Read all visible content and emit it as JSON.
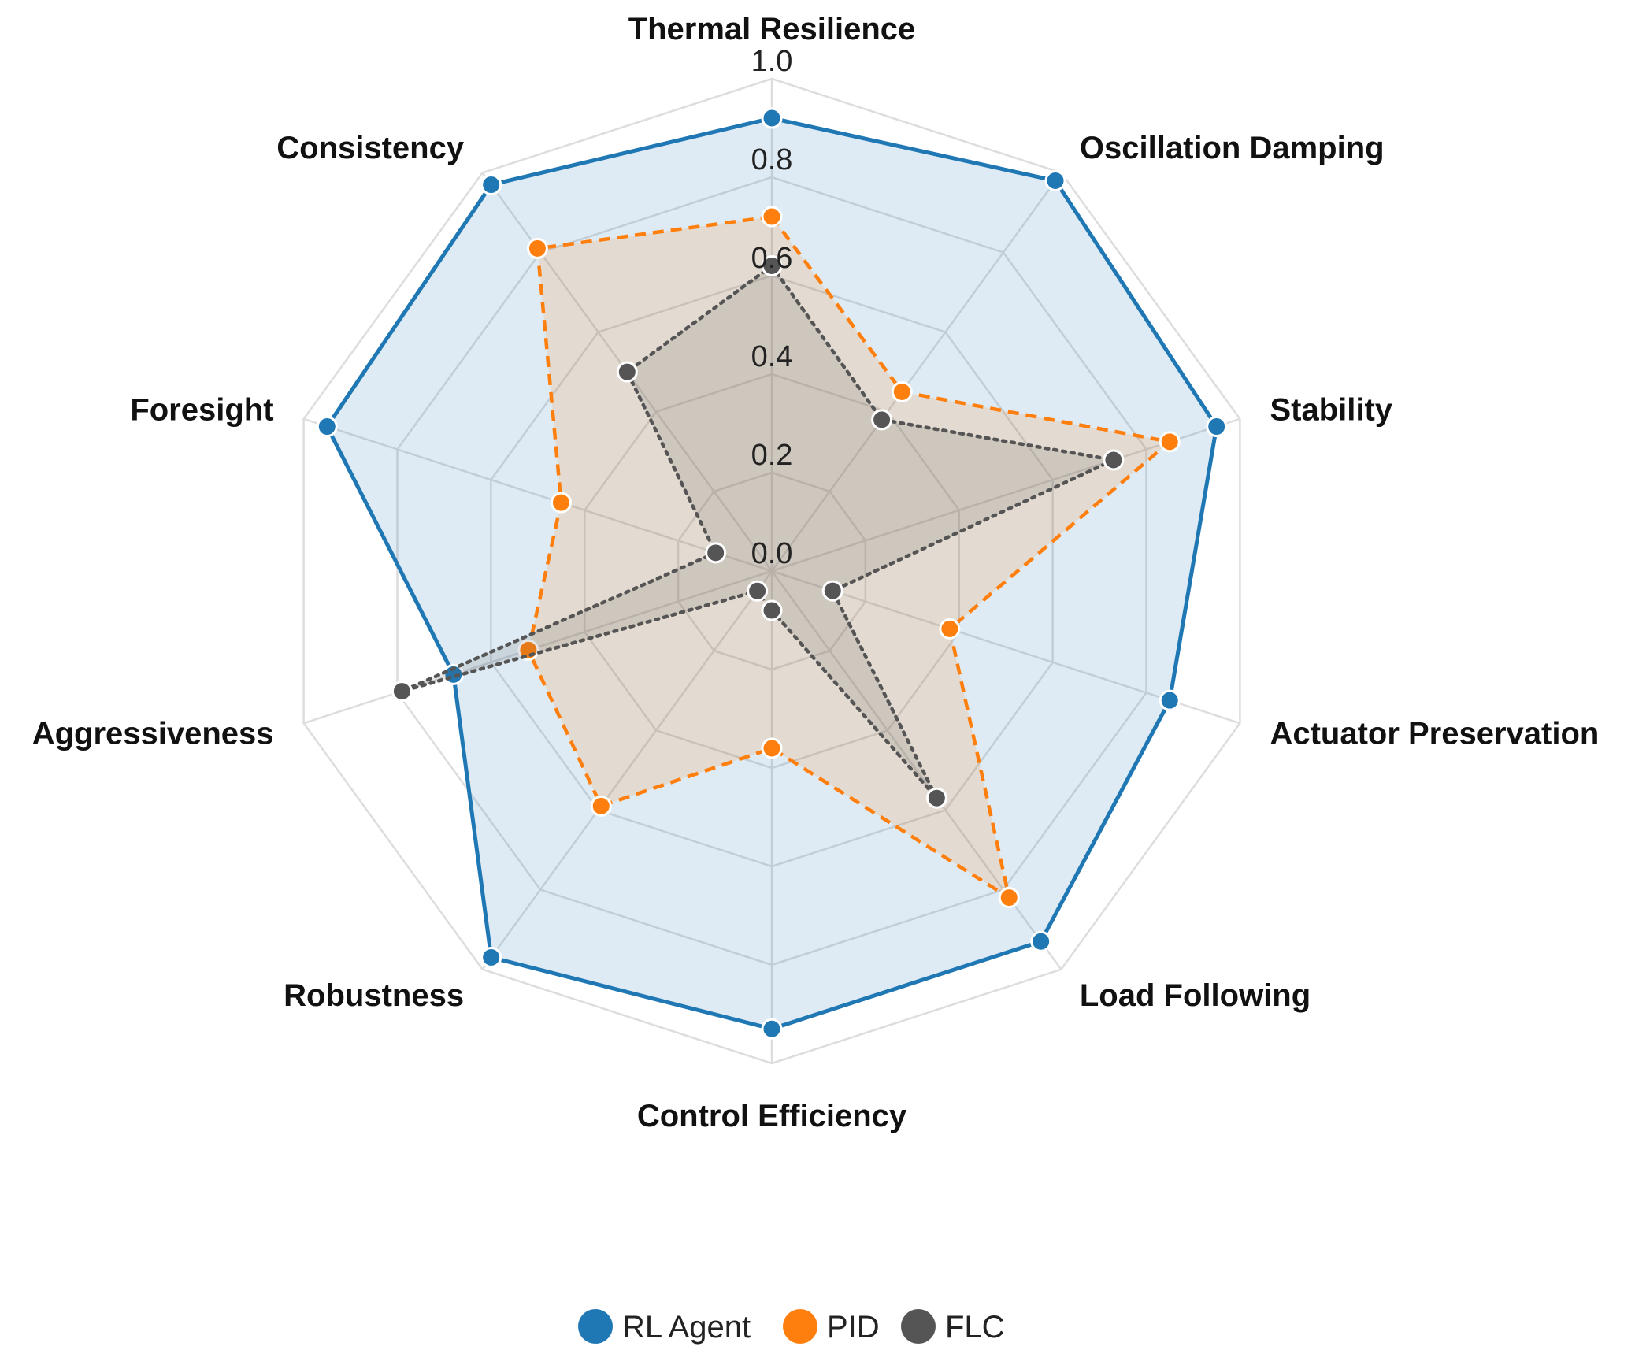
{
  "chart_data": {
    "type": "radar",
    "title": "",
    "axes": [
      "Thermal Resilience",
      "Oscillation Damping",
      "Stability",
      "Actuator Preservation",
      "Load Following",
      "Control Efficiency",
      "Robustness",
      "Aggressiveness",
      "Foresight",
      "Consistency"
    ],
    "radial_ticks": [
      "0.0",
      "0.2",
      "0.4",
      "0.6",
      "0.8",
      "1.0"
    ],
    "range": [
      0,
      1
    ],
    "grid": true,
    "legend_position": "bottom",
    "series": [
      {
        "name": "RL Agent",
        "color": "#1f77b4",
        "line_style": "solid",
        "fill": "#1f77b4",
        "values": [
          0.92,
          0.98,
          0.95,
          0.85,
          0.93,
          0.93,
          0.97,
          0.68,
          0.95,
          0.97
        ]
      },
      {
        "name": "PID",
        "color": "#ff7f0e",
        "line_style": "dashed",
        "fill": "#ff7f0e",
        "values": [
          0.72,
          0.45,
          0.85,
          0.38,
          0.82,
          0.36,
          0.59,
          0.52,
          0.45,
          0.81
        ]
      },
      {
        "name": "FLC",
        "color": "#555555",
        "line_style": "dotted",
        "fill": "#555555",
        "values": [
          0.62,
          0.38,
          0.73,
          0.13,
          0.57,
          0.08,
          0.05,
          0.79,
          0.12,
          0.5
        ]
      }
    ]
  }
}
